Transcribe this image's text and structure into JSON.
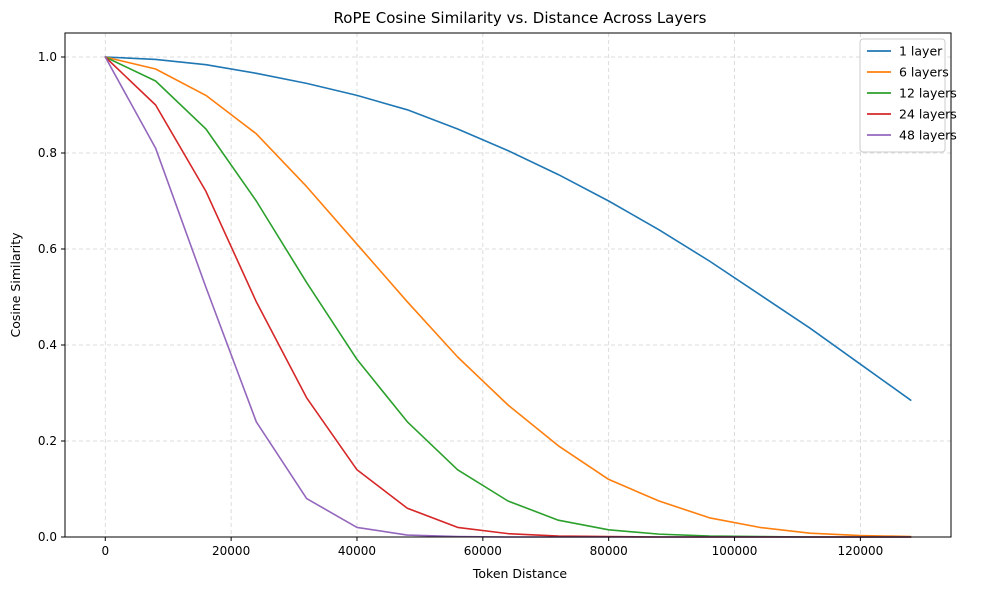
{
  "chart_data": {
    "type": "line",
    "title": "RoPE Cosine Similarity vs. Distance Across Layers",
    "xlabel": "Token Distance",
    "ylabel": "Cosine Similarity",
    "xlim": [
      -6400,
      134400
    ],
    "ylim": [
      0,
      1.05
    ],
    "grid": true,
    "legend_position": "top-right",
    "xticks": [
      0,
      20000,
      40000,
      60000,
      80000,
      100000,
      120000
    ],
    "xtick_labels": [
      "0",
      "20000",
      "40000",
      "60000",
      "80000",
      "100000",
      "120000"
    ],
    "yticks": [
      0.0,
      0.2,
      0.4,
      0.6,
      0.8,
      1.0
    ],
    "ytick_labels": [
      "0.0",
      "0.2",
      "0.4",
      "0.6",
      "0.8",
      "1.0"
    ],
    "x": [
      0,
      8000,
      16000,
      24000,
      32000,
      40000,
      48000,
      56000,
      64000,
      72000,
      80000,
      88000,
      96000,
      104000,
      112000,
      120000,
      128000
    ],
    "series": [
      {
        "name": "1 layer",
        "color": "#1f77b4",
        "values": [
          1.0,
          0.995,
          0.984,
          0.966,
          0.945,
          0.92,
          0.89,
          0.85,
          0.805,
          0.755,
          0.7,
          0.64,
          0.575,
          0.505,
          0.435,
          0.36,
          0.285
        ]
      },
      {
        "name": "6 layers",
        "color": "#ff7f0e",
        "values": [
          1.0,
          0.975,
          0.92,
          0.84,
          0.73,
          0.61,
          0.49,
          0.375,
          0.275,
          0.19,
          0.12,
          0.075,
          0.04,
          0.02,
          0.008,
          0.003,
          0.001
        ]
      },
      {
        "name": "12 layers",
        "color": "#2ca02c",
        "values": [
          1.0,
          0.95,
          0.85,
          0.7,
          0.53,
          0.37,
          0.24,
          0.14,
          0.075,
          0.035,
          0.015,
          0.006,
          0.002,
          0.001,
          0.0,
          0.0,
          0.0
        ]
      },
      {
        "name": "24 layers",
        "color": "#d62728",
        "values": [
          1.0,
          0.9,
          0.72,
          0.49,
          0.29,
          0.14,
          0.06,
          0.02,
          0.007,
          0.002,
          0.001,
          0.0,
          0.0,
          0.0,
          0.0,
          0.0,
          0.0
        ]
      },
      {
        "name": "48 layers",
        "color": "#9467bd",
        "values": [
          1.0,
          0.81,
          0.52,
          0.24,
          0.08,
          0.02,
          0.004,
          0.001,
          0.0,
          0.0,
          0.0,
          0.0,
          0.0,
          0.0,
          0.0,
          0.0,
          0.0
        ]
      }
    ]
  }
}
